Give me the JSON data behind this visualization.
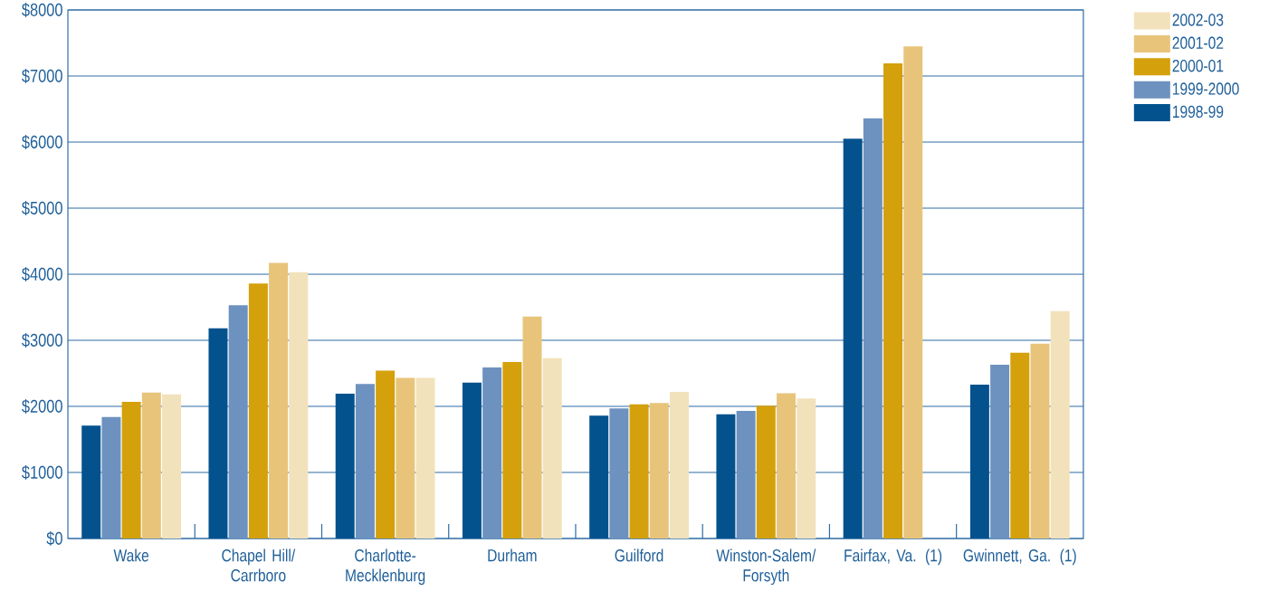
{
  "chart_data": {
    "type": "bar",
    "categories": [
      "Wake",
      "Chapel Hill/ Carrboro",
      "Charlotte-Mecklenburg",
      "Durham",
      "Guilford",
      "Winston-Salem/ Forsyth",
      "Fairfax, Va. (1)",
      "Gwinnett, Ga. (1)"
    ],
    "series": [
      {
        "name": "1998-99",
        "color": "#03528e",
        "values": [
          1710,
          3180,
          2190,
          2360,
          1860,
          1880,
          6050,
          2330
        ]
      },
      {
        "name": "1999-2000",
        "color": "#6d92bf",
        "values": [
          1840,
          3530,
          2340,
          2590,
          1970,
          1930,
          6360,
          2630
        ]
      },
      {
        "name": "2000-01",
        "color": "#d4a00c",
        "values": [
          2070,
          3860,
          2540,
          2670,
          2030,
          2010,
          7190,
          2810
        ]
      },
      {
        "name": "2001-02",
        "color": "#e8c47b",
        "values": [
          2210,
          4170,
          2430,
          3360,
          2050,
          2200,
          7450,
          2950
        ]
      },
      {
        "name": "2002-03",
        "color": "#f2e2bb",
        "values": [
          2180,
          4030,
          2430,
          2730,
          2220,
          2120,
          null,
          3440
        ]
      }
    ],
    "ylim": [
      0,
      8000
    ],
    "yticks": [
      {
        "value": 0,
        "label": "$0"
      },
      {
        "value": 1000,
        "label": "$1000"
      },
      {
        "value": 2000,
        "label": "$2000"
      },
      {
        "value": 3000,
        "label": "$3000"
      },
      {
        "value": 4000,
        "label": "$4000"
      },
      {
        "value": 5000,
        "label": "$5000"
      },
      {
        "value": 6000,
        "label": "$6000"
      },
      {
        "value": 7000,
        "label": "$7000"
      },
      {
        "value": 8000,
        "label": "$8000"
      }
    ],
    "grid": "y",
    "legend": "top right"
  }
}
